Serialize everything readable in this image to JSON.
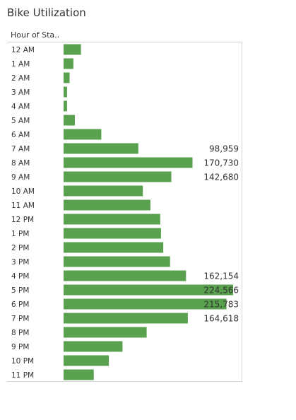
{
  "page": {
    "title": "Bike Utilization",
    "row_header": "Hour of Sta.."
  },
  "colors": {
    "bar": "#59a14f",
    "text": "#333333"
  },
  "chart_data": {
    "type": "bar",
    "orientation": "horizontal",
    "title": "Bike Utilization",
    "category_header": "Hour of Sta..",
    "xlim": [
      0,
      224566
    ],
    "categories": [
      "12 AM",
      "1 AM",
      "2 AM",
      "3 AM",
      "4 AM",
      "5 AM",
      "6 AM",
      "7 AM",
      "8 AM",
      "9 AM",
      "10 AM",
      "11 AM",
      "12 PM",
      "1 PM",
      "2 PM",
      "3 PM",
      "4 PM",
      "5 PM",
      "6 PM",
      "7 PM",
      "8 PM",
      "9 PM",
      "10 PM",
      "11 PM"
    ],
    "values": [
      23000,
      13000,
      8000,
      4600,
      4600,
      15000,
      50000,
      98959,
      170730,
      142680,
      105000,
      115000,
      128000,
      129000,
      132000,
      141000,
      162154,
      224566,
      215783,
      164618,
      110000,
      78000,
      60000,
      40000
    ],
    "labels": [
      "",
      "",
      "",
      "",
      "",
      "",
      "",
      "98,959",
      "170,730",
      "142,680",
      "",
      "",
      "",
      "",
      "",
      "",
      "162,154",
      "224,566",
      "215,783",
      "164,618",
      "",
      "",
      "",
      ""
    ]
  }
}
